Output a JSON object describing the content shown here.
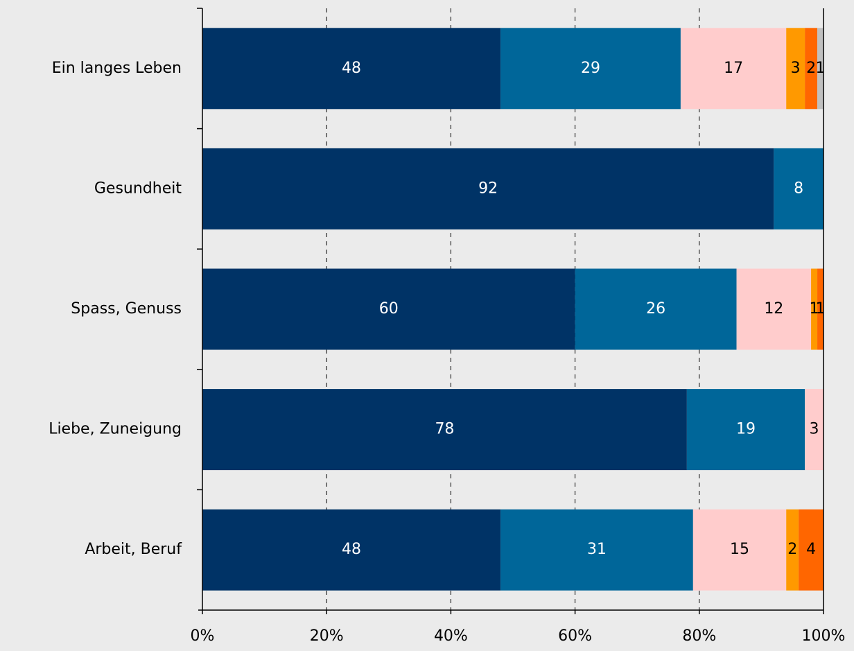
{
  "chart_data": {
    "type": "stacked_bar_horizontal",
    "categories": [
      "Ein langes Leben",
      "Gesundheit",
      "Spass, Genuss",
      "Liebe, Zuneigung",
      "Arbeit, Beruf"
    ],
    "series": [
      {
        "color": "#003366",
        "values": [
          48,
          92,
          60,
          78,
          48
        ]
      },
      {
        "color": "#006699",
        "values": [
          29,
          8,
          26,
          19,
          31
        ]
      },
      {
        "color": "#ffcccc",
        "values": [
          17,
          null,
          12,
          3,
          15
        ]
      },
      {
        "color": "#ff9900",
        "values": [
          3,
          null,
          1,
          null,
          2
        ]
      },
      {
        "color": "#ff6600",
        "values": [
          2,
          null,
          1,
          null,
          4
        ]
      },
      {
        "color": "#c0c0c0",
        "values": [
          1,
          null,
          null,
          null,
          null
        ]
      }
    ],
    "xlim": [
      0,
      100
    ],
    "xticks": [
      {
        "value": 0,
        "label": "0%"
      },
      {
        "value": 20,
        "label": "20%"
      },
      {
        "value": 40,
        "label": "40%"
      },
      {
        "value": 60,
        "label": "60%"
      },
      {
        "value": 80,
        "label": "80%"
      },
      {
        "value": 100,
        "label": "100%"
      }
    ],
    "grid": true
  }
}
